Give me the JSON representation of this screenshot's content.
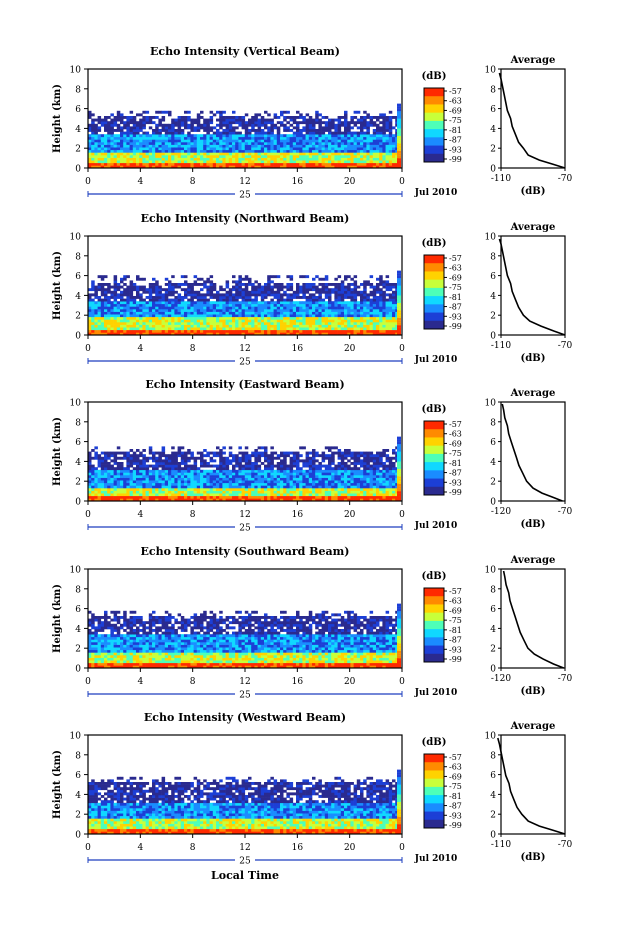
{
  "figure": {
    "x_axis_title": "Local Time",
    "height_label": "Height (km)",
    "date_label": "Jul 2010",
    "day_label": "25",
    "unit_label": "(dB)",
    "average_title": "Average",
    "average_xlabel": "(dB)"
  },
  "chart_data": [
    {
      "type": "heatmap",
      "title": "Echo Intensity (Vertical Beam)",
      "xlabel": "Local Time",
      "ylabel": "Height (km)",
      "x_ticks": [
        "0",
        "4",
        "8",
        "12",
        "16",
        "20",
        "0"
      ],
      "xlim": [
        0,
        24
      ],
      "y_ticks": [
        "0",
        "2",
        "4",
        "6",
        "8",
        "10"
      ],
      "ylim": [
        0,
        10
      ],
      "colorbar_ticks": [
        "-57",
        "-63",
        "-69",
        "-75",
        "-81",
        "-87",
        "-93",
        "-99"
      ],
      "layers": [
        {
          "top_km": 0.4,
          "level": "max"
        },
        {
          "top_km": 1.5,
          "level": "high"
        },
        {
          "top_km": 3.2,
          "level": "mid"
        },
        {
          "top_km": 5.0,
          "level": "low"
        }
      ],
      "average_profile": {
        "xlim": [
          -110,
          -70
        ],
        "x_ticks": [
          "-110",
          "-70"
        ],
        "points": [
          [
            -70,
            0
          ],
          [
            -78,
            0.4
          ],
          [
            -86,
            0.8
          ],
          [
            -93,
            1.3
          ],
          [
            -96,
            2
          ],
          [
            -99,
            2.6
          ],
          [
            -101,
            3.4
          ],
          [
            -103,
            4.2
          ],
          [
            -104,
            5
          ],
          [
            -106,
            5.8
          ],
          [
            -107,
            6.6
          ],
          [
            -108,
            7.4
          ],
          [
            -109,
            8.2
          ],
          [
            -110,
            9
          ],
          [
            -111,
            9.6
          ]
        ]
      }
    },
    {
      "type": "heatmap",
      "title": "Echo Intensity (Northward Beam)",
      "xlabel": "Local Time",
      "ylabel": "Height (km)",
      "x_ticks": [
        "0",
        "4",
        "8",
        "12",
        "16",
        "20",
        "0"
      ],
      "xlim": [
        0,
        24
      ],
      "y_ticks": [
        "0",
        "2",
        "4",
        "6",
        "8",
        "10"
      ],
      "ylim": [
        0,
        10
      ],
      "colorbar_ticks": [
        "-57",
        "-63",
        "-69",
        "-75",
        "-81",
        "-87",
        "-93",
        "-99"
      ],
      "layers": [
        {
          "top_km": 0.5,
          "level": "max"
        },
        {
          "top_km": 1.6,
          "level": "high"
        },
        {
          "top_km": 3.4,
          "level": "mid"
        },
        {
          "top_km": 5.2,
          "level": "low"
        }
      ],
      "average_profile": {
        "xlim": [
          -110,
          -70
        ],
        "x_ticks": [
          "-110",
          "-70"
        ],
        "points": [
          [
            -70,
            0
          ],
          [
            -77,
            0.4
          ],
          [
            -85,
            0.9
          ],
          [
            -92,
            1.4
          ],
          [
            -96,
            2
          ],
          [
            -99,
            2.8
          ],
          [
            -101,
            3.6
          ],
          [
            -103,
            4.4
          ],
          [
            -104,
            5.2
          ],
          [
            -106,
            6
          ],
          [
            -107,
            6.8
          ],
          [
            -108,
            7.6
          ],
          [
            -109,
            8.4
          ],
          [
            -110,
            9.2
          ],
          [
            -111,
            9.7
          ]
        ]
      }
    },
    {
      "type": "heatmap",
      "title": "Echo Intensity (Eastward Beam)",
      "xlabel": "Local Time",
      "ylabel": "Height (km)",
      "x_ticks": [
        "0",
        "4",
        "8",
        "12",
        "16",
        "20",
        "0"
      ],
      "xlim": [
        0,
        24
      ],
      "y_ticks": [
        "0",
        "2",
        "4",
        "6",
        "8",
        "10"
      ],
      "ylim": [
        0,
        10
      ],
      "colorbar_ticks": [
        "-57",
        "-63",
        "-69",
        "-75",
        "-81",
        "-87",
        "-93",
        "-99"
      ],
      "layers": [
        {
          "top_km": 0.3,
          "level": "max"
        },
        {
          "top_km": 1.3,
          "level": "high"
        },
        {
          "top_km": 3.0,
          "level": "mid"
        },
        {
          "top_km": 4.8,
          "level": "low"
        }
      ],
      "average_profile": {
        "xlim": [
          -120,
          -70
        ],
        "x_ticks": [
          "-120",
          "-70"
        ],
        "points": [
          [
            -72,
            0
          ],
          [
            -80,
            0.4
          ],
          [
            -88,
            0.8
          ],
          [
            -95,
            1.3
          ],
          [
            -100,
            2
          ],
          [
            -103,
            2.8
          ],
          [
            -106,
            3.6
          ],
          [
            -108,
            4.4
          ],
          [
            -110,
            5.2
          ],
          [
            -112,
            6
          ],
          [
            -114,
            6.8
          ],
          [
            -115,
            7.6
          ],
          [
            -117,
            8.4
          ],
          [
            -118,
            9.2
          ],
          [
            -119,
            9.8
          ]
        ]
      }
    },
    {
      "type": "heatmap",
      "title": "Echo Intensity (Southward Beam)",
      "xlabel": "Local Time",
      "ylabel": "Height (km)",
      "x_ticks": [
        "0",
        "4",
        "8",
        "12",
        "16",
        "20",
        "0"
      ],
      "xlim": [
        0,
        24
      ],
      "y_ticks": [
        "0",
        "2",
        "4",
        "6",
        "8",
        "10"
      ],
      "ylim": [
        0,
        10
      ],
      "colorbar_ticks": [
        "-57",
        "-63",
        "-69",
        "-75",
        "-81",
        "-87",
        "-93",
        "-99"
      ],
      "layers": [
        {
          "top_km": 0.4,
          "level": "max"
        },
        {
          "top_km": 1.5,
          "level": "high"
        },
        {
          "top_km": 3.3,
          "level": "mid"
        },
        {
          "top_km": 5.1,
          "level": "low"
        }
      ],
      "average_profile": {
        "xlim": [
          -120,
          -70
        ],
        "x_ticks": [
          "-120",
          "-70"
        ],
        "points": [
          [
            -71,
            0
          ],
          [
            -79,
            0.4
          ],
          [
            -87,
            0.9
          ],
          [
            -94,
            1.4
          ],
          [
            -99,
            2
          ],
          [
            -102,
            2.8
          ],
          [
            -105,
            3.6
          ],
          [
            -107,
            4.4
          ],
          [
            -109,
            5.2
          ],
          [
            -111,
            6
          ],
          [
            -113,
            6.8
          ],
          [
            -114,
            7.6
          ],
          [
            -116,
            8.4
          ],
          [
            -117,
            9.2
          ],
          [
            -118,
            9.8
          ]
        ]
      }
    },
    {
      "type": "heatmap",
      "title": "Echo Intensity (Westward Beam)",
      "xlabel": "Local Time",
      "ylabel": "Height (km)",
      "x_ticks": [
        "0",
        "4",
        "8",
        "12",
        "16",
        "20",
        "0"
      ],
      "xlim": [
        0,
        24
      ],
      "y_ticks": [
        "0",
        "2",
        "4",
        "6",
        "8",
        "10"
      ],
      "ylim": [
        0,
        10
      ],
      "colorbar_ticks": [
        "-57",
        "-63",
        "-69",
        "-75",
        "-81",
        "-87",
        "-93",
        "-99"
      ],
      "layers": [
        {
          "top_km": 0.3,
          "level": "max"
        },
        {
          "top_km": 1.4,
          "level": "high"
        },
        {
          "top_km": 3.1,
          "level": "mid"
        },
        {
          "top_km": 5.0,
          "level": "low"
        }
      ],
      "average_profile": {
        "xlim": [
          -110,
          -70
        ],
        "x_ticks": [
          "-110",
          "-70"
        ],
        "points": [
          [
            -70,
            0
          ],
          [
            -78,
            0.4
          ],
          [
            -86,
            0.8
          ],
          [
            -93,
            1.3
          ],
          [
            -97,
            2
          ],
          [
            -100,
            2.7
          ],
          [
            -102,
            3.5
          ],
          [
            -104,
            4.3
          ],
          [
            -105,
            5.1
          ],
          [
            -107,
            5.9
          ],
          [
            -108,
            6.7
          ],
          [
            -109,
            7.5
          ],
          [
            -110,
            8.3
          ],
          [
            -111,
            9.1
          ],
          [
            -112,
            9.7
          ]
        ]
      }
    }
  ],
  "colors": {
    "scale": [
      "#ff2a00",
      "#ff8a00",
      "#ffd200",
      "#c8ff3a",
      "#4dffb8",
      "#10d8ff",
      "#1a8cff",
      "#1c3fd6",
      "#2a2a8f"
    ],
    "background": "#ffffff",
    "axis": "#000000"
  }
}
